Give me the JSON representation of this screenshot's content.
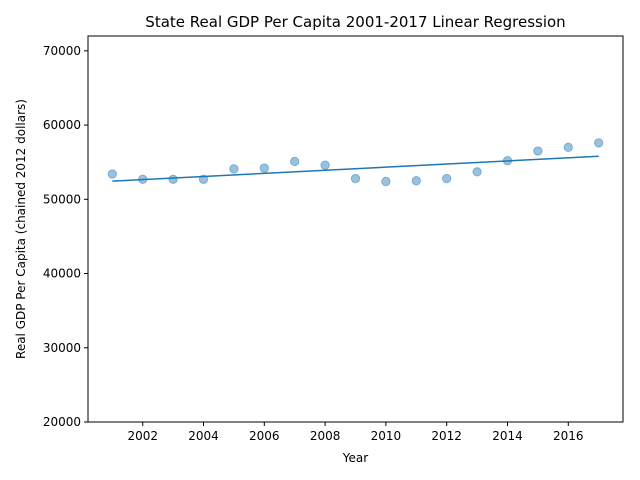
{
  "chart_data": {
    "type": "scatter",
    "title": "State Real GDP Per Capita 2001-2017 Linear Regression",
    "xlabel": "Year",
    "ylabel": "Real GDP Per Capita (chained 2012 dollars)",
    "xlim": [
      2000.2,
      2017.8
    ],
    "ylim": [
      20000,
      72000
    ],
    "x_ticks": [
      2002,
      2004,
      2006,
      2008,
      2010,
      2012,
      2014,
      2016
    ],
    "y_ticks": [
      20000,
      30000,
      40000,
      50000,
      60000,
      70000
    ],
    "grid": false,
    "series": [
      {
        "type": "scatter",
        "color": "#1f77b4",
        "opacity": 0.45,
        "points": [
          {
            "x": 2001,
            "y": 53400
          },
          {
            "x": 2002,
            "y": 52700
          },
          {
            "x": 2003,
            "y": 52700
          },
          {
            "x": 2004,
            "y": 52700
          },
          {
            "x": 2005,
            "y": 54100
          },
          {
            "x": 2006,
            "y": 54200
          },
          {
            "x": 2007,
            "y": 55100
          },
          {
            "x": 2008,
            "y": 54600
          },
          {
            "x": 2009,
            "y": 52800
          },
          {
            "x": 2010,
            "y": 52400
          },
          {
            "x": 2011,
            "y": 52500
          },
          {
            "x": 2012,
            "y": 52800
          },
          {
            "x": 2013,
            "y": 53700
          },
          {
            "x": 2014,
            "y": 55200
          },
          {
            "x": 2015,
            "y": 56500
          },
          {
            "x": 2016,
            "y": 57000
          },
          {
            "x": 2017,
            "y": 57600
          }
        ]
      },
      {
        "type": "line",
        "color": "#1f77b4",
        "points": [
          {
            "x": 2001,
            "y": 52450
          },
          {
            "x": 2017,
            "y": 55800
          }
        ]
      }
    ]
  }
}
